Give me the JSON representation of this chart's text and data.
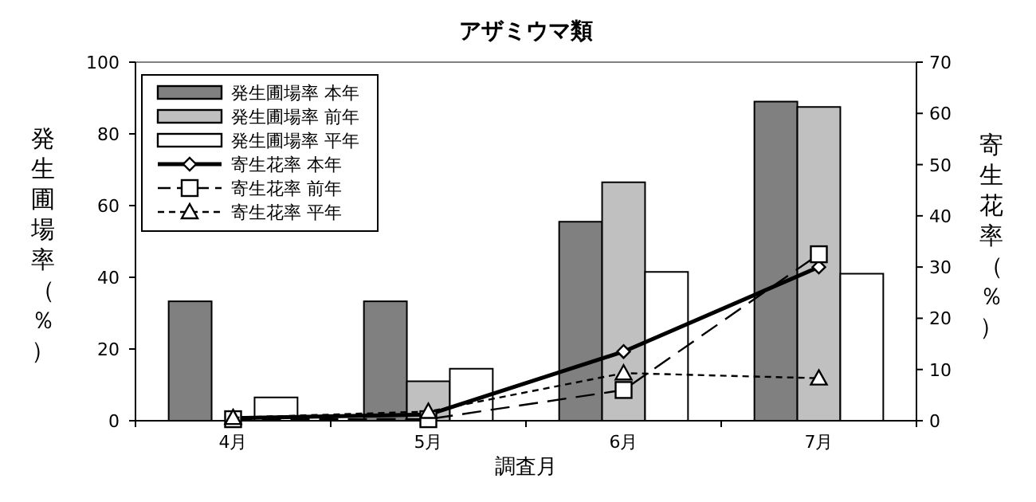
{
  "chart_data": {
    "type": "bar",
    "title": "アザミウマ類",
    "xlabel": "調査月",
    "ylabel": "発生圃場率（％）",
    "y2label": "寄生花率（％）",
    "categories": [
      "4月",
      "5月",
      "6月",
      "7月"
    ],
    "series": [
      {
        "name": "発生圃場率 本年",
        "color": "#808080",
        "values": [
          33.3,
          33.3,
          55.5,
          89
        ]
      },
      {
        "name": "発生圃場率 前年",
        "color": "#c0c0c0",
        "values": [
          0,
          11,
          66.5,
          87.5
        ]
      },
      {
        "name": "発生圃場率 平年",
        "color": "#ffffff",
        "values": [
          6.5,
          14.5,
          41.5,
          41
        ]
      },
      {
        "name": "寄生花率 本年",
        "type": "line",
        "axis": "y2",
        "color": "#000000",
        "marker": "diamond",
        "line_style": "solid",
        "values": [
          0.5,
          1.2,
          13.5,
          30
        ]
      },
      {
        "name": "寄生花率 前年",
        "type": "line",
        "axis": "y2",
        "color": "#000000",
        "marker": "square",
        "line_style": "dashed",
        "values": [
          0.3,
          0.3,
          6,
          32.5
        ]
      },
      {
        "name": "寄生花率 平年",
        "type": "line",
        "axis": "y2",
        "color": "#000000",
        "marker": "triangle",
        "line_style": "dotted",
        "values": [
          0.6,
          1.8,
          9.3,
          8.3
        ]
      }
    ],
    "ylim": [
      0,
      100
    ],
    "yticks": [
      0,
      20,
      40,
      60,
      80,
      100
    ],
    "y2lim": [
      0,
      70
    ],
    "y2ticks": [
      0,
      10,
      20,
      30,
      40,
      50,
      60,
      70
    ],
    "grid": false,
    "legend": "top left"
  }
}
